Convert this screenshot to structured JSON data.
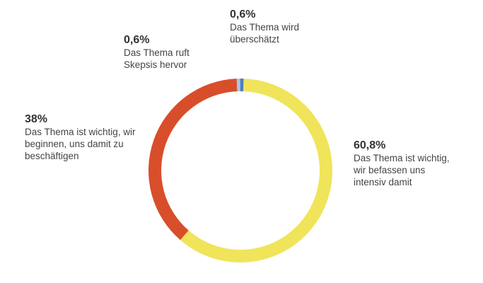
{
  "chart_data": {
    "type": "donut",
    "categories": [
      "Das Thema ist wichtig, wir befassen uns intensiv damit",
      "Das Thema ist wichtig, wir beginnen, uns damit zu beschäftigen",
      "Das Thema ruft Skepsis hervor",
      "Das Thema wird überschätzt"
    ],
    "values": [
      60.8,
      38,
      0.6,
      0.6
    ],
    "value_labels": [
      "60,8%",
      "38%",
      "0,6%",
      "0,6%"
    ],
    "colors": [
      "#f0e45a",
      "#d84e2a",
      "#a9c6e0",
      "#4f7fbf"
    ]
  }
}
